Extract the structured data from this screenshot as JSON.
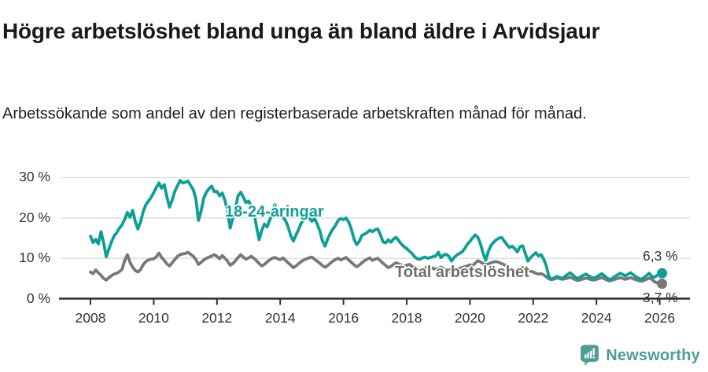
{
  "header": {
    "title": "Högre arbetslöshet bland unga än bland äldre i Arvidsjaur",
    "subtitle": "Arbetssökande som andel av den registerbaserade arbetskraften månad för månad."
  },
  "chart_data": {
    "type": "line",
    "title": "Högre arbetslöshet bland unga än bland äldre i Arvidsjaur",
    "subtitle": "Arbetssökande som andel av den registerbaserade arbetskraften månad för månad.",
    "x_unit": "year (monthly data)",
    "x_ticks": [
      2008,
      2010,
      2012,
      2014,
      2016,
      2018,
      2020,
      2022,
      2024,
      2026
    ],
    "y_ticks": [
      {
        "value": 30,
        "label": "30 %"
      },
      {
        "value": 20,
        "label": "20 %"
      },
      {
        "value": 10,
        "label": "10 %"
      },
      {
        "value": 0,
        "label": "0 %"
      }
    ],
    "y_range": [
      0,
      32
    ],
    "grid": "horizontal",
    "legend_position": "inline-labels",
    "colors": {
      "grid": "#d9d9d9",
      "axis": "#2e2e2e",
      "tick_text": "#333333"
    },
    "series": [
      {
        "name": "Total arbetslöshet",
        "color": "#787878",
        "start_year": 2008,
        "interval_months": 1,
        "end_label": "3,7 %",
        "end_value": 3.7,
        "values": [
          6.6,
          6.2,
          7.1,
          6.4,
          5.8,
          5.0,
          4.6,
          5.2,
          5.7,
          6.1,
          6.3,
          6.7,
          7.3,
          9.5,
          10.9,
          9.0,
          7.8,
          7.0,
          6.6,
          7.2,
          8.4,
          9.2,
          9.6,
          9.8,
          9.9,
          10.4,
          11.3,
          10.2,
          9.5,
          8.6,
          8.1,
          8.9,
          9.7,
          10.5,
          10.9,
          11.1,
          11.2,
          11.5,
          11.0,
          10.5,
          9.7,
          8.5,
          9.0,
          9.6,
          10.0,
          10.3,
          10.6,
          10.9,
          10.5,
          9.9,
          10.7,
          10.0,
          9.3,
          8.3,
          8.7,
          9.4,
          10.2,
          10.9,
          10.3,
          9.8,
          10.1,
          10.5,
          10.0,
          9.4,
          8.7,
          8.1,
          8.5,
          9.1,
          9.6,
          10.0,
          10.2,
          9.9,
          9.7,
          10.1,
          9.5,
          8.9,
          8.3,
          7.7,
          8.1,
          8.7,
          9.2,
          9.6,
          9.9,
          10.1,
          10.3,
          9.8,
          9.3,
          8.8,
          8.2,
          7.8,
          8.2,
          8.8,
          9.3,
          9.7,
          10.0,
          9.6,
          9.9,
          10.2,
          9.6,
          9.0,
          8.4,
          7.9,
          8.3,
          8.9,
          9.4,
          9.8,
          10.1,
          9.5,
          9.8,
          10.0,
          9.4,
          8.8,
          8.2,
          7.7,
          8.0,
          8.5,
          8.9,
          8.6,
          8.3,
          8.0,
          8.3,
          8.5,
          8.0,
          7.6,
          7.2,
          6.9,
          7.2,
          7.6,
          7.9,
          7.7,
          7.5,
          7.3,
          7.5,
          7.8,
          7.4,
          7.0,
          6.7,
          6.5,
          6.8,
          7.2,
          7.5,
          7.7,
          7.9,
          8.1,
          8.4,
          8.2,
          8.8,
          9.4,
          9.1,
          8.7,
          8.4,
          8.6,
          8.9,
          9.1,
          9.2,
          9.0,
          8.7,
          8.4,
          8.0,
          7.7,
          7.3,
          7.0,
          7.2,
          7.5,
          7.7,
          7.4,
          7.1,
          6.8,
          6.6,
          6.3,
          6.1,
          6.2,
          5.9,
          5.4,
          4.9,
          4.7,
          4.9,
          5.1,
          5.0,
          4.8,
          4.9,
          5.1,
          5.3,
          5.0,
          4.7,
          4.5,
          4.7,
          4.9,
          5.1,
          4.9,
          4.7,
          4.6,
          4.8,
          5.0,
          5.2,
          4.9,
          4.6,
          4.4,
          4.6,
          4.8,
          5.0,
          5.2,
          5.0,
          4.8,
          5.0,
          5.2,
          4.9,
          4.7,
          4.5,
          4.3,
          4.5,
          4.8,
          5.1,
          4.8,
          4.2,
          3.9,
          3.7
        ]
      },
      {
        "name": "18-24-åringar",
        "color": "#0d9f97",
        "start_year": 2008,
        "interval_months": 1,
        "end_label": "6,3 %",
        "end_value": 6.3,
        "values": [
          15.5,
          13.9,
          14.7,
          13.6,
          16.6,
          13.8,
          10.4,
          12.3,
          14.1,
          15.6,
          16.4,
          17.5,
          18.3,
          19.7,
          21.4,
          20.2,
          21.9,
          19.2,
          17.3,
          19.0,
          21.6,
          23.3,
          24.2,
          25.1,
          26.3,
          27.6,
          28.7,
          27.4,
          28.3,
          25.2,
          22.7,
          24.5,
          26.6,
          28.0,
          29.3,
          28.7,
          28.9,
          29.2,
          28.1,
          27.0,
          24.8,
          19.4,
          21.8,
          25.0,
          26.4,
          27.3,
          27.9,
          26.5,
          26.6,
          25.5,
          26.2,
          24.4,
          21.8,
          17.5,
          19.9,
          22.5,
          25.5,
          26.4,
          25.2,
          23.8,
          24.2,
          23.0,
          21.5,
          17.8,
          14.6,
          17.0,
          18.5,
          17.8,
          19.5,
          20.8,
          21.6,
          21.0,
          20.8,
          20.2,
          19.4,
          17.8,
          15.6,
          14.3,
          15.8,
          17.2,
          18.8,
          19.6,
          20.4,
          20.0,
          19.2,
          19.8,
          18.6,
          16.9,
          14.4,
          13.0,
          14.8,
          16.2,
          17.3,
          18.2,
          19.4,
          19.9,
          19.6,
          20.0,
          19.0,
          17.2,
          14.8,
          13.4,
          14.2,
          15.7,
          16.0,
          16.4,
          17.0,
          16.6,
          17.1,
          17.3,
          15.9,
          14.1,
          13.8,
          14.6,
          14.0,
          14.8,
          15.2,
          14.4,
          13.5,
          12.9,
          12.4,
          11.8,
          11.2,
          10.4,
          9.9,
          9.8,
          10.1,
          10.3,
          10.0,
          10.2,
          10.4,
          10.6,
          11.5,
          10.2,
          10.8,
          11.0,
          10.5,
          9.3,
          10.2,
          10.8,
          11.2,
          11.6,
          12.4,
          13.5,
          14.2,
          15.1,
          15.8,
          15.2,
          13.6,
          11.2,
          9.5,
          11.8,
          13.2,
          14.0,
          14.6,
          15.0,
          15.2,
          14.3,
          13.4,
          12.7,
          13.0,
          12.4,
          11.6,
          12.9,
          13.1,
          11.2,
          9.3,
          10.2,
          10.8,
          11.4,
          10.6,
          10.9,
          9.8,
          8.0,
          5.4,
          4.8,
          5.2,
          5.5,
          5.3,
          5.0,
          5.5,
          6.0,
          6.4,
          5.9,
          5.3,
          5.0,
          5.4,
          5.8,
          6.1,
          5.7,
          5.3,
          5.1,
          5.4,
          5.8,
          6.2,
          5.7,
          5.1,
          4.7,
          5.0,
          5.5,
          5.9,
          6.3,
          6.0,
          5.6,
          6.1,
          6.4,
          5.9,
          5.4,
          5.0,
          4.8,
          5.2,
          5.7,
          6.3,
          5.5,
          5.3,
          5.8,
          6.3
        ]
      }
    ]
  },
  "footer": {
    "brand": "Newsworthy",
    "logo_color": "#4e9c97"
  }
}
